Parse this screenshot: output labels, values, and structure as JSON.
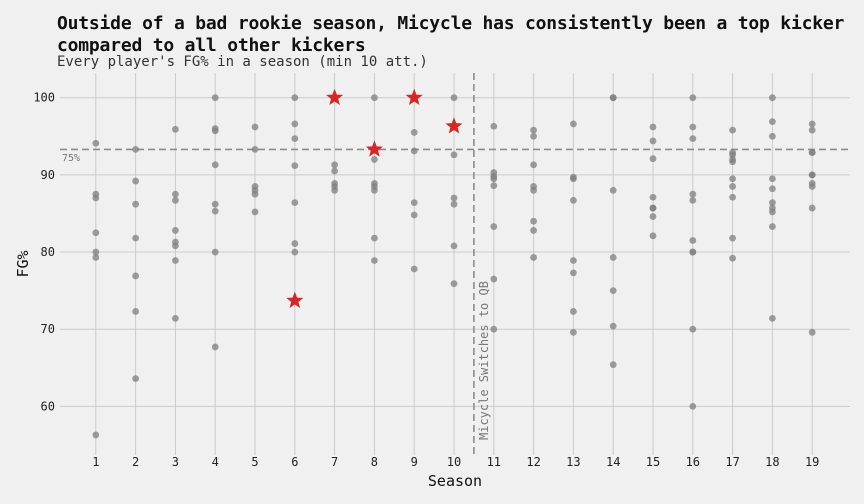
{
  "chart_data": {
    "type": "scatter",
    "title": "Outside of a bad rookie season, Micycle has consistently been a top kicker compared to all other kickers",
    "subtitle": "Every player's FG% in a season (min 10 att.)",
    "xlabel": "Season",
    "ylabel": "FG%",
    "x_ticks": [
      1,
      2,
      3,
      4,
      5,
      6,
      7,
      8,
      9,
      10,
      11,
      12,
      13,
      14,
      15,
      16,
      17,
      18,
      19
    ],
    "y_ticks": [
      60,
      70,
      80,
      90,
      100
    ],
    "xlim": [
      0.1,
      19.95
    ],
    "ylim": [
      53.7,
      103.2
    ],
    "grid": true,
    "reference_lines": {
      "hline": {
        "y": 93.3,
        "label": "75%"
      },
      "vline": {
        "x": 10.5,
        "label": "Micycle Switches to QB"
      }
    },
    "colors": {
      "others": "#7f7f7f",
      "micycle": "#d62728",
      "background": "#f0f0f0",
      "grid": "#cbcbcb",
      "reference": "#8c8c8c"
    },
    "series": [
      {
        "points": [
          [
            1,
            94.1
          ],
          [
            1,
            87.5
          ],
          [
            1,
            87.0
          ],
          [
            1,
            82.5
          ],
          [
            1,
            80.0
          ],
          [
            1,
            79.3
          ],
          [
            1,
            56.3
          ],
          [
            2,
            93.3
          ],
          [
            2,
            89.2
          ],
          [
            2,
            86.2
          ],
          [
            2,
            81.8
          ],
          [
            2,
            76.9
          ],
          [
            2,
            72.3
          ],
          [
            2,
            63.6
          ],
          [
            3,
            95.9
          ],
          [
            3,
            87.5
          ],
          [
            3,
            86.7
          ],
          [
            3,
            82.8
          ],
          [
            3,
            81.3
          ],
          [
            3,
            80.8
          ],
          [
            3,
            78.9
          ],
          [
            3,
            71.4
          ],
          [
            4,
            100
          ],
          [
            4,
            96.0
          ],
          [
            4,
            95.7
          ],
          [
            4,
            91.3
          ],
          [
            4,
            86.2
          ],
          [
            4,
            85.3
          ],
          [
            4,
            80.0
          ],
          [
            4,
            67.7
          ],
          [
            5,
            96.2
          ],
          [
            5,
            93.3
          ],
          [
            5,
            88.5
          ],
          [
            5,
            88.0
          ],
          [
            5,
            87.5
          ],
          [
            5,
            85.2
          ],
          [
            6,
            100
          ],
          [
            6,
            96.6
          ],
          [
            6,
            94.7
          ],
          [
            6,
            91.2
          ],
          [
            6,
            86.4
          ],
          [
            6,
            81.1
          ],
          [
            6,
            80.0
          ],
          [
            7,
            91.3
          ],
          [
            7,
            90.5
          ],
          [
            7,
            88.9
          ],
          [
            7,
            88.5
          ],
          [
            7,
            88.0
          ],
          [
            8,
            100
          ],
          [
            8,
            92.0
          ],
          [
            8,
            88.9
          ],
          [
            8,
            88.5
          ],
          [
            8,
            88.0
          ],
          [
            8,
            81.8
          ],
          [
            8,
            78.9
          ],
          [
            9,
            95.5
          ],
          [
            9,
            93.1
          ],
          [
            9,
            86.4
          ],
          [
            9,
            84.8
          ],
          [
            9,
            77.8
          ],
          [
            10,
            100
          ],
          [
            10,
            92.6
          ],
          [
            10,
            87.0
          ],
          [
            10,
            86.2
          ],
          [
            10,
            80.8
          ],
          [
            10,
            75.9
          ],
          [
            11,
            96.3
          ],
          [
            11,
            90.3
          ],
          [
            11,
            89.8
          ],
          [
            11,
            89.5
          ],
          [
            11,
            88.6
          ],
          [
            11,
            83.3
          ],
          [
            11,
            76.5
          ],
          [
            11,
            70.0
          ],
          [
            12,
            95.8
          ],
          [
            12,
            95.0
          ],
          [
            12,
            91.3
          ],
          [
            12,
            88.5
          ],
          [
            12,
            88.0
          ],
          [
            12,
            84.0
          ],
          [
            12,
            82.8
          ],
          [
            12,
            79.3
          ],
          [
            13,
            96.6
          ],
          [
            13,
            89.7
          ],
          [
            13,
            89.5
          ],
          [
            13,
            86.7
          ],
          [
            13,
            78.9
          ],
          [
            13,
            77.3
          ],
          [
            13,
            72.3
          ],
          [
            13,
            69.6
          ],
          [
            14,
            100
          ],
          [
            14,
            100
          ],
          [
            14,
            88.0
          ],
          [
            14,
            79.3
          ],
          [
            14,
            75.0
          ],
          [
            14,
            70.4
          ],
          [
            14,
            65.4
          ],
          [
            15,
            96.2
          ],
          [
            15,
            94.4
          ],
          [
            15,
            92.1
          ],
          [
            15,
            87.1
          ],
          [
            15,
            85.7
          ],
          [
            15,
            85.7
          ],
          [
            15,
            84.6
          ],
          [
            15,
            82.1
          ],
          [
            16,
            100
          ],
          [
            16,
            96.2
          ],
          [
            16,
            94.7
          ],
          [
            16,
            87.5
          ],
          [
            16,
            86.7
          ],
          [
            16,
            81.5
          ],
          [
            16,
            80.0
          ],
          [
            16,
            80.0
          ],
          [
            16,
            70.0
          ],
          [
            16,
            60.0
          ],
          [
            17,
            95.8
          ],
          [
            17,
            92.9
          ],
          [
            17,
            92.6
          ],
          [
            17,
            92.0
          ],
          [
            17,
            91.7
          ],
          [
            17,
            89.5
          ],
          [
            17,
            88.5
          ],
          [
            17,
            87.1
          ],
          [
            17,
            81.8
          ],
          [
            17,
            79.2
          ],
          [
            18,
            100
          ],
          [
            18,
            96.9
          ],
          [
            18,
            95.0
          ],
          [
            18,
            89.5
          ],
          [
            18,
            88.2
          ],
          [
            18,
            86.4
          ],
          [
            18,
            85.7
          ],
          [
            18,
            85.2
          ],
          [
            18,
            83.3
          ],
          [
            18,
            71.4
          ],
          [
            19,
            96.6
          ],
          [
            19,
            95.8
          ],
          [
            19,
            92.9
          ],
          [
            19,
            92.9
          ],
          [
            19,
            90.0
          ],
          [
            19,
            90.0
          ],
          [
            19,
            88.9
          ],
          [
            19,
            88.5
          ],
          [
            19,
            85.7
          ],
          [
            19,
            69.6
          ]
        ]
      },
      {
        "points": [
          [
            6,
            73.7
          ],
          [
            7,
            100
          ],
          [
            8,
            93.3
          ],
          [
            9,
            100
          ],
          [
            10,
            96.3
          ]
        ]
      }
    ]
  }
}
